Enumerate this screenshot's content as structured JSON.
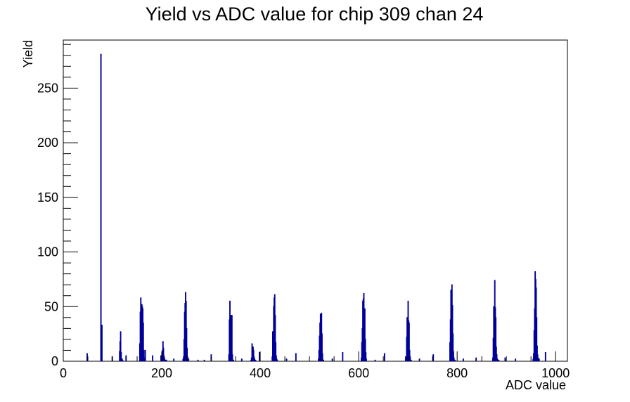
{
  "chart_data": {
    "type": "bar",
    "title": "Yield vs ADC value for chip 309 chan 24",
    "xlabel": "ADC value",
    "ylabel": "Yield",
    "xlim": [
      0,
      1024
    ],
    "ylim": [
      0,
      294
    ],
    "x_ticks": [
      0,
      200,
      400,
      600,
      800,
      1000
    ],
    "y_ticks": [
      0,
      50,
      100,
      150,
      200,
      250
    ],
    "grid": false,
    "legend": "none",
    "line_color": "#000099",
    "series": [
      {
        "x": [
          48,
          76,
          77,
          78,
          99,
          114,
          115,
          116,
          117,
          118,
          119,
          120,
          127,
          155,
          156,
          157,
          158,
          159,
          160,
          161,
          162,
          163,
          164,
          165,
          166,
          181,
          198,
          200,
          201,
          202,
          203,
          204,
          205,
          206,
          207,
          208,
          209,
          224,
          243,
          244,
          245,
          246,
          247,
          248,
          249,
          250,
          251,
          252,
          253,
          254,
          273,
          286,
          300,
          336,
          337,
          338,
          339,
          340,
          341,
          342,
          343,
          344,
          345,
          362,
          381,
          382,
          383,
          384,
          385,
          386,
          387,
          388,
          389,
          390,
          398,
          424,
          425,
          426,
          427,
          428,
          429,
          430,
          431,
          432,
          433,
          434,
          453,
          472,
          518,
          519,
          520,
          521,
          522,
          523,
          524,
          525,
          526,
          527,
          528,
          546,
          567,
          605,
          606,
          607,
          608,
          609,
          610,
          611,
          612,
          613,
          614,
          615,
          633,
          652,
          695,
          697,
          698,
          699,
          700,
          701,
          702,
          703,
          704,
          705,
          706,
          723,
          751,
          785,
          786,
          787,
          788,
          789,
          790,
          791,
          792,
          793,
          794,
          795,
          812,
          838,
          872,
          873,
          874,
          875,
          876,
          877,
          878,
          879,
          880,
          881,
          882,
          883,
          884,
          897,
          918,
          954,
          955,
          956,
          957,
          958,
          959,
          960,
          961,
          962,
          963,
          964,
          966,
          979
        ],
        "values": [
          7,
          281,
          33,
          33,
          4,
          9,
          18,
          27,
          8,
          2,
          2,
          1,
          5,
          16,
          45,
          58,
          30,
          52,
          50,
          48,
          35,
          10,
          3,
          1,
          10,
          5,
          5,
          7,
          10,
          18,
          12,
          5,
          3,
          1,
          1,
          1,
          1,
          2,
          2,
          4,
          20,
          45,
          53,
          63,
          55,
          30,
          12,
          4,
          1,
          2,
          1,
          1,
          6,
          6,
          38,
          55,
          30,
          42,
          25,
          42,
          6,
          1,
          1,
          2,
          1,
          3,
          16,
          8,
          13,
          10,
          4,
          2,
          1,
          1,
          8,
          4,
          27,
          20,
          50,
          58,
          61,
          42,
          17,
          5,
          2,
          1,
          2,
          7,
          2,
          10,
          23,
          35,
          43,
          42,
          44,
          25,
          7,
          1,
          1,
          2,
          8,
          3,
          17,
          30,
          55,
          57,
          62,
          44,
          48,
          20,
          8,
          2,
          1,
          7,
          4,
          22,
          40,
          33,
          55,
          37,
          35,
          10,
          4,
          1,
          1,
          2,
          6,
          17,
          38,
          65,
          55,
          70,
          51,
          25,
          9,
          3,
          1,
          1,
          2,
          3,
          3,
          21,
          50,
          48,
          74,
          49,
          40,
          13,
          6,
          2,
          1,
          1,
          1,
          3,
          2,
          2,
          7,
          28,
          48,
          82,
          75,
          67,
          40,
          14,
          6,
          3,
          2,
          8
        ]
      }
    ]
  }
}
